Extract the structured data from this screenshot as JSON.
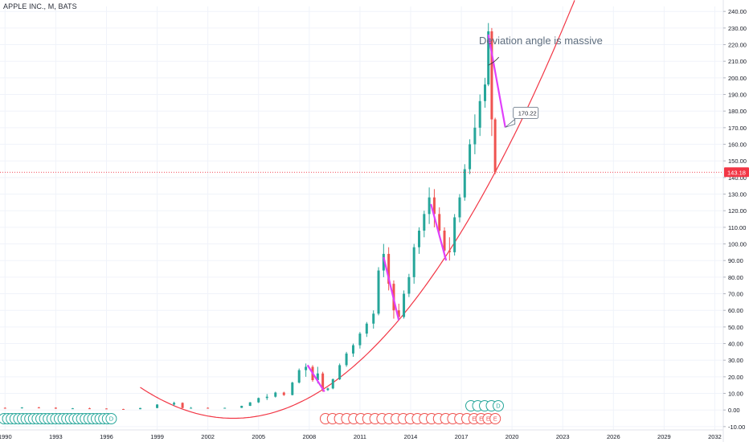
{
  "symbol": "APPLE INC., M, BATS",
  "annotation_text": "Deviation angle is massive",
  "callout_value": "170.22",
  "price_tag": "143.18",
  "colors": {
    "up": "#26a69a",
    "down": "#ef5350",
    "trendline": "#e040fb",
    "curve": "#f23645",
    "price_line": "#f23645",
    "axis_text": "#131722",
    "annotation": "#5d6d7e"
  },
  "chart_data": {
    "type": "candlestick",
    "y_axis_ticks": [
      "240.00",
      "230.00",
      "220.00",
      "210.00",
      "200.00",
      "190.00",
      "180.00",
      "170.00",
      "160.00",
      "150.00",
      "140.00",
      "130.00",
      "120.00",
      "110.00",
      "100.00",
      "90.00",
      "80.00",
      "70.00",
      "60.00",
      "50.00",
      "40.00",
      "30.00",
      "20.00",
      "10.00",
      "0.00",
      "-10.00"
    ],
    "x_axis_ticks": [
      "1990",
      "1993",
      "1996",
      "1999",
      "2002",
      "2005",
      "2008",
      "2011",
      "2014",
      "2017",
      "2020",
      "2023",
      "2026",
      "2029",
      "2032"
    ],
    "ylim": [
      -12,
      243
    ],
    "xlim": [
      1989.7,
      2032.5
    ],
    "last_price": 143.18,
    "candles": [
      {
        "t": 1990.0,
        "o": 1.3,
        "h": 1.6,
        "l": 0.9,
        "c": 1.1
      },
      {
        "t": 1991.0,
        "o": 1.1,
        "h": 1.7,
        "l": 0.9,
        "c": 1.5
      },
      {
        "t": 1992.0,
        "o": 1.5,
        "h": 1.9,
        "l": 1.2,
        "c": 1.4
      },
      {
        "t": 1993.0,
        "o": 1.4,
        "h": 1.6,
        "l": 0.7,
        "c": 0.8
      },
      {
        "t": 1994.0,
        "o": 0.8,
        "h": 1.2,
        "l": 0.7,
        "c": 1.0
      },
      {
        "t": 1995.0,
        "o": 1.0,
        "h": 1.4,
        "l": 0.8,
        "c": 0.9
      },
      {
        "t": 1996.0,
        "o": 0.9,
        "h": 1.0,
        "l": 0.5,
        "c": 0.6
      },
      {
        "t": 1997.0,
        "o": 0.6,
        "h": 0.7,
        "l": 0.4,
        "c": 0.5
      },
      {
        "t": 1998.0,
        "o": 0.5,
        "h": 1.3,
        "l": 0.5,
        "c": 1.2
      },
      {
        "t": 1999.0,
        "o": 1.2,
        "h": 3.5,
        "l": 1.1,
        "c": 3.3
      },
      {
        "t": 2000.0,
        "o": 3.3,
        "h": 5.0,
        "l": 2.5,
        "c": 4.3
      },
      {
        "t": 2000.5,
        "o": 4.3,
        "h": 4.6,
        "l": 1.0,
        "c": 1.2
      },
      {
        "t": 2001.0,
        "o": 1.2,
        "h": 1.8,
        "l": 0.9,
        "c": 1.3
      },
      {
        "t": 2002.0,
        "o": 1.3,
        "h": 1.6,
        "l": 0.9,
        "c": 1.0
      },
      {
        "t": 2003.0,
        "o": 1.0,
        "h": 1.4,
        "l": 0.9,
        "c": 1.3
      },
      {
        "t": 2004.0,
        "o": 1.3,
        "h": 2.6,
        "l": 1.2,
        "c": 2.5
      },
      {
        "t": 2004.5,
        "o": 2.5,
        "h": 4.8,
        "l": 2.4,
        "c": 4.6
      },
      {
        "t": 2005.0,
        "o": 4.6,
        "h": 7.5,
        "l": 4.2,
        "c": 7.2
      },
      {
        "t": 2005.5,
        "o": 7.2,
        "h": 9.6,
        "l": 6.0,
        "c": 8.0
      },
      {
        "t": 2006.0,
        "o": 8.0,
        "h": 11.0,
        "l": 7.5,
        "c": 10.5
      },
      {
        "t": 2006.5,
        "o": 10.5,
        "h": 11.0,
        "l": 8.5,
        "c": 9.0
      },
      {
        "t": 2007.0,
        "o": 9.0,
        "h": 17.0,
        "l": 8.8,
        "c": 16.5
      },
      {
        "t": 2007.4,
        "o": 16.5,
        "h": 25.0,
        "l": 16.0,
        "c": 24.0
      },
      {
        "t": 2007.8,
        "o": 24.0,
        "h": 28.0,
        "l": 20.0,
        "c": 26.0
      },
      {
        "t": 2008.2,
        "o": 26.0,
        "h": 27.0,
        "l": 17.0,
        "c": 18.0
      },
      {
        "t": 2008.5,
        "o": 18.0,
        "h": 26.0,
        "l": 16.0,
        "c": 22.0
      },
      {
        "t": 2008.8,
        "o": 22.0,
        "h": 23.0,
        "l": 11.0,
        "c": 12.0
      },
      {
        "t": 2009.1,
        "o": 12.0,
        "h": 13.5,
        "l": 11.5,
        "c": 13.0
      },
      {
        "t": 2009.4,
        "o": 13.0,
        "h": 19.0,
        "l": 12.5,
        "c": 18.5
      },
      {
        "t": 2009.8,
        "o": 18.5,
        "h": 28.0,
        "l": 18.0,
        "c": 27.0
      },
      {
        "t": 2010.2,
        "o": 27.0,
        "h": 35.0,
        "l": 26.0,
        "c": 34.0
      },
      {
        "t": 2010.6,
        "o": 34.0,
        "h": 40.0,
        "l": 32.0,
        "c": 39.0
      },
      {
        "t": 2011.0,
        "o": 39.0,
        "h": 47.0,
        "l": 37.0,
        "c": 46.0
      },
      {
        "t": 2011.4,
        "o": 46.0,
        "h": 53.0,
        "l": 44.0,
        "c": 52.0
      },
      {
        "t": 2011.8,
        "o": 52.0,
        "h": 60.0,
        "l": 49.0,
        "c": 58.0
      },
      {
        "t": 2012.1,
        "o": 58.0,
        "h": 86.0,
        "l": 57.0,
        "c": 84.0
      },
      {
        "t": 2012.4,
        "o": 84.0,
        "h": 100.0,
        "l": 80.0,
        "c": 94.0
      },
      {
        "t": 2012.7,
        "o": 94.0,
        "h": 98.0,
        "l": 72.0,
        "c": 76.0
      },
      {
        "t": 2013.0,
        "o": 76.0,
        "h": 78.0,
        "l": 55.0,
        "c": 60.0
      },
      {
        "t": 2013.3,
        "o": 60.0,
        "h": 64.0,
        "l": 54.0,
        "c": 56.0
      },
      {
        "t": 2013.6,
        "o": 56.0,
        "h": 72.0,
        "l": 55.0,
        "c": 70.0
      },
      {
        "t": 2013.9,
        "o": 70.0,
        "h": 82.0,
        "l": 68.0,
        "c": 80.0
      },
      {
        "t": 2014.2,
        "o": 80.0,
        "h": 100.0,
        "l": 76.0,
        "c": 98.0
      },
      {
        "t": 2014.5,
        "o": 98.0,
        "h": 110.0,
        "l": 94.0,
        "c": 108.0
      },
      {
        "t": 2014.8,
        "o": 108.0,
        "h": 120.0,
        "l": 104.0,
        "c": 118.0
      },
      {
        "t": 2015.1,
        "o": 118.0,
        "h": 134.0,
        "l": 112.0,
        "c": 128.0
      },
      {
        "t": 2015.4,
        "o": 128.0,
        "h": 133.0,
        "l": 110.0,
        "c": 118.0
      },
      {
        "t": 2015.7,
        "o": 118.0,
        "h": 122.0,
        "l": 104.0,
        "c": 108.0
      },
      {
        "t": 2016.0,
        "o": 108.0,
        "h": 110.0,
        "l": 92.0,
        "c": 96.0
      },
      {
        "t": 2016.3,
        "o": 96.0,
        "h": 104.0,
        "l": 90.0,
        "c": 95.0
      },
      {
        "t": 2016.6,
        "o": 95.0,
        "h": 118.0,
        "l": 93.0,
        "c": 116.0
      },
      {
        "t": 2016.9,
        "o": 116.0,
        "h": 130.0,
        "l": 113.0,
        "c": 128.0
      },
      {
        "t": 2017.2,
        "o": 128.0,
        "h": 148.0,
        "l": 126.0,
        "c": 145.0
      },
      {
        "t": 2017.5,
        "o": 145.0,
        "h": 163.0,
        "l": 142.0,
        "c": 160.0
      },
      {
        "t": 2017.8,
        "o": 160.0,
        "h": 178.0,
        "l": 154.0,
        "c": 170.0
      },
      {
        "t": 2018.1,
        "o": 170.0,
        "h": 190.0,
        "l": 165.0,
        "c": 186.0
      },
      {
        "t": 2018.4,
        "o": 186.0,
        "h": 200.0,
        "l": 182.0,
        "c": 196.0
      },
      {
        "t": 2018.6,
        "o": 196.0,
        "h": 233.0,
        "l": 195.0,
        "c": 228.0
      },
      {
        "t": 2018.8,
        "o": 228.0,
        "h": 230.0,
        "l": 165.0,
        "c": 175.0
      },
      {
        "t": 2019.0,
        "o": 175.0,
        "h": 176.0,
        "l": 142.0,
        "c": 143.18
      }
    ],
    "drawings": {
      "trendlines": [
        {
          "from": [
            2007.9,
            27.0
          ],
          "to": [
            2008.9,
            11.0
          ]
        },
        {
          "from": [
            2012.4,
            92.0
          ],
          "to": [
            2013.3,
            54.0
          ]
        },
        {
          "from": [
            2015.2,
            124.0
          ],
          "to": [
            2016.1,
            90.0
          ]
        },
        {
          "from": [
            2018.6,
            226.0
          ],
          "to": [
            2019.6,
            170.22
          ]
        }
      ],
      "parabola": {
        "vertex": [
          2003.5,
          -5.0
        ],
        "passes_through": [
          2019.0,
          143.18
        ]
      }
    },
    "event_markers": {
      "D": {
        "count": 30,
        "row": "bottom",
        "color": "#26a69a"
      },
      "E": {
        "count": 25,
        "row": "bottom",
        "color": "#ef5350"
      },
      "D_upper": {
        "count": 5,
        "row": "upper",
        "color": "#26a69a"
      }
    }
  }
}
